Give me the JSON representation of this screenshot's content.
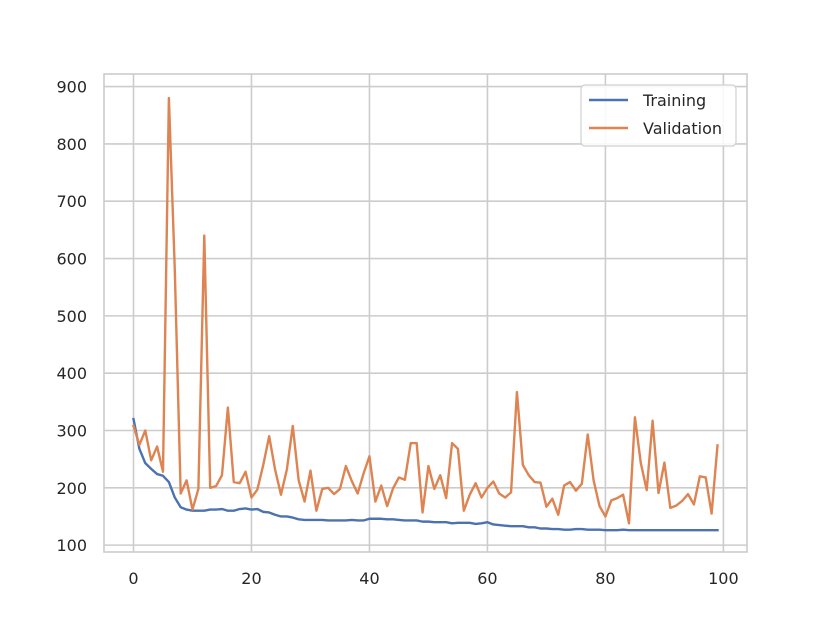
{
  "chart_data": {
    "type": "line",
    "title": "",
    "xlabel": "",
    "ylabel": "",
    "xlim": [
      -5,
      104
    ],
    "ylim": [
      88,
      922
    ],
    "xticks": [
      0,
      20,
      40,
      60,
      80,
      100
    ],
    "yticks": [
      100,
      200,
      300,
      400,
      500,
      600,
      700,
      800,
      900
    ],
    "grid": true,
    "legend_position": "top-right",
    "x": [
      0,
      1,
      2,
      3,
      4,
      5,
      6,
      7,
      8,
      9,
      10,
      11,
      12,
      13,
      14,
      15,
      16,
      17,
      18,
      19,
      20,
      21,
      22,
      23,
      24,
      25,
      26,
      27,
      28,
      29,
      30,
      31,
      32,
      33,
      34,
      35,
      36,
      37,
      38,
      39,
      40,
      41,
      42,
      43,
      44,
      45,
      46,
      47,
      48,
      49,
      50,
      51,
      52,
      53,
      54,
      55,
      56,
      57,
      58,
      59,
      60,
      61,
      62,
      63,
      64,
      65,
      66,
      67,
      68,
      69,
      70,
      71,
      72,
      73,
      74,
      75,
      76,
      77,
      78,
      79,
      80,
      81,
      82,
      83,
      84,
      85,
      86,
      87,
      88,
      89,
      90,
      91,
      92,
      93,
      94,
      95,
      96,
      97,
      98,
      99
    ],
    "series": [
      {
        "name": "Training",
        "color": "#4c72b0",
        "values": [
          320,
          268,
          243,
          233,
          224,
          221,
          210,
          183,
          166,
          162,
          160,
          160,
          160,
          162,
          162,
          163,
          160,
          160,
          163,
          164,
          162,
          163,
          158,
          157,
          153,
          150,
          150,
          148,
          145,
          144,
          144,
          144,
          144,
          143,
          143,
          143,
          143,
          144,
          143,
          143,
          146,
          146,
          146,
          145,
          145,
          144,
          143,
          143,
          143,
          141,
          141,
          140,
          140,
          140,
          138,
          139,
          139,
          139,
          137,
          138,
          140,
          136,
          135,
          134,
          133,
          133,
          133,
          131,
          131,
          129,
          129,
          128,
          128,
          127,
          127,
          128,
          128,
          127,
          127,
          127,
          126,
          126,
          126,
          127,
          126,
          126,
          126,
          126,
          126,
          126,
          126,
          126,
          126,
          126,
          126,
          126,
          126,
          126,
          126,
          126
        ]
      },
      {
        "name": "Validation",
        "color": "#dd8452",
        "values": [
          308,
          275,
          300,
          248,
          272,
          228,
          880,
          580,
          190,
          213,
          162,
          198,
          640,
          200,
          203,
          222,
          340,
          210,
          208,
          228,
          183,
          197,
          240,
          290,
          232,
          188,
          232,
          308,
          213,
          176,
          230,
          160,
          198,
          200,
          189,
          198,
          238,
          212,
          190,
          225,
          255,
          176,
          204,
          168,
          199,
          218,
          214,
          278,
          278,
          157,
          238,
          198,
          222,
          182,
          278,
          268,
          160,
          188,
          208,
          183,
          200,
          211,
          190,
          183,
          192,
          367,
          240,
          222,
          210,
          209,
          167,
          181,
          153,
          204,
          210,
          195,
          207,
          293,
          213,
          168,
          150,
          178,
          182,
          188,
          138,
          323,
          243,
          196,
          317,
          191,
          244,
          165,
          169,
          177,
          189,
          171,
          220,
          218,
          155,
          274
        ]
      }
    ]
  },
  "colors": {
    "background": "#ffffff",
    "grid": "#cccccc",
    "axes_edge": "#cccccc",
    "text": "#262626"
  }
}
